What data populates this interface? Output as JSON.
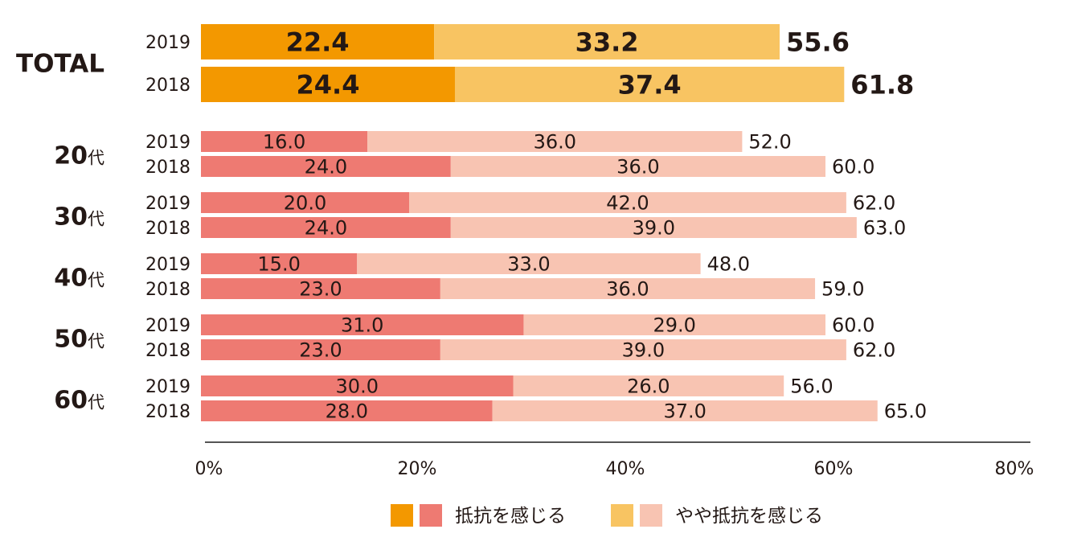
{
  "colors": {
    "total_strong": "#F39800",
    "total_light": "#F8C462",
    "total_sum": "#F39800",
    "age_strong": "#EE7A72",
    "age_light": "#F8C4B2",
    "text": "#231815",
    "axis": "#555555"
  },
  "chart_data": {
    "type": "bar",
    "orientation": "horizontal",
    "stacked": true,
    "xlim": [
      0,
      80
    ],
    "xticks": [
      "0%",
      "20%",
      "40%",
      "60%",
      "80%"
    ],
    "groups": [
      {
        "label": "TOTAL",
        "rows": [
          {
            "year": "2019",
            "values": [
              22.4,
              33.2
            ],
            "labels": [
              "22.4",
              "33.2"
            ],
            "total": "55.6"
          },
          {
            "year": "2018",
            "values": [
              24.4,
              37.4
            ],
            "labels": [
              "24.4",
              "37.4"
            ],
            "total": "61.8"
          }
        ]
      },
      {
        "label": "20代",
        "rows": [
          {
            "year": "2019",
            "values": [
              16.0,
              36.0
            ],
            "labels": [
              "16.0",
              "36.0"
            ],
            "total": "52.0"
          },
          {
            "year": "2018",
            "values": [
              24.0,
              36.0
            ],
            "labels": [
              "24.0",
              "36.0"
            ],
            "total": "60.0"
          }
        ]
      },
      {
        "label": "30代",
        "rows": [
          {
            "year": "2019",
            "values": [
              20.0,
              42.0
            ],
            "labels": [
              "20.0",
              "42.0"
            ],
            "total": "62.0"
          },
          {
            "year": "2018",
            "values": [
              24.0,
              39.0
            ],
            "labels": [
              "24.0",
              "39.0"
            ],
            "total": "63.0"
          }
        ]
      },
      {
        "label": "40代",
        "rows": [
          {
            "year": "2019",
            "values": [
              15.0,
              33.0
            ],
            "labels": [
              "15.0",
              "33.0"
            ],
            "total": "48.0"
          },
          {
            "year": "2018",
            "values": [
              23.0,
              36.0
            ],
            "labels": [
              "23.0",
              "36.0"
            ],
            "total": "59.0"
          }
        ]
      },
      {
        "label": "50代",
        "rows": [
          {
            "year": "2019",
            "values": [
              31.0,
              29.0
            ],
            "labels": [
              "31.0",
              "29.0"
            ],
            "total": "60.0"
          },
          {
            "year": "2018",
            "values": [
              23.0,
              39.0
            ],
            "labels": [
              "23.0",
              "39.0"
            ],
            "total": "62.0"
          }
        ]
      },
      {
        "label": "60代",
        "rows": [
          {
            "year": "2019",
            "values": [
              30.0,
              26.0
            ],
            "labels": [
              "30.0",
              "26.0"
            ],
            "total": "56.0"
          },
          {
            "year": "2018",
            "values": [
              28.0,
              37.0
            ],
            "labels": [
              "28.0",
              "37.0"
            ],
            "total": "65.0"
          }
        ]
      }
    ],
    "series": [
      {
        "name": "抵抗を感じる"
      },
      {
        "name": "やや抵抗を感じる"
      }
    ],
    "legend_position": "bottom-center"
  }
}
